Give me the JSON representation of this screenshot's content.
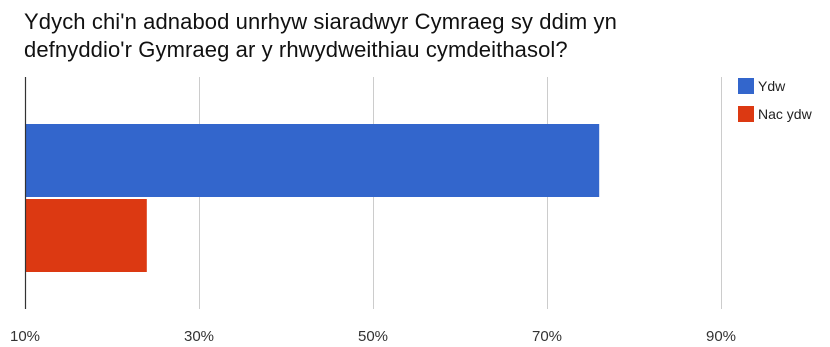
{
  "chart_data": {
    "type": "bar",
    "orientation": "horizontal",
    "title": "Ydych chi'n adnabod unrhyw siaradwyr Cymraeg sy ddim yn defnyddio'r Gymraeg ar y rhwydweithiau cymdeithasol?",
    "xlabel": "",
    "ylabel": "",
    "xlim": [
      10,
      100
    ],
    "x_ticks": [
      10,
      30,
      50,
      70,
      90
    ],
    "x_tick_labels": [
      "10%",
      "30%",
      "50%",
      "70%",
      "90%"
    ],
    "grid": true,
    "legend_position": "top-right",
    "series": [
      {
        "name": "Ydw",
        "value": 76,
        "color": "#3366cc"
      },
      {
        "name": "Nac ydw",
        "value": 24,
        "color": "#dc3912"
      }
    ]
  }
}
